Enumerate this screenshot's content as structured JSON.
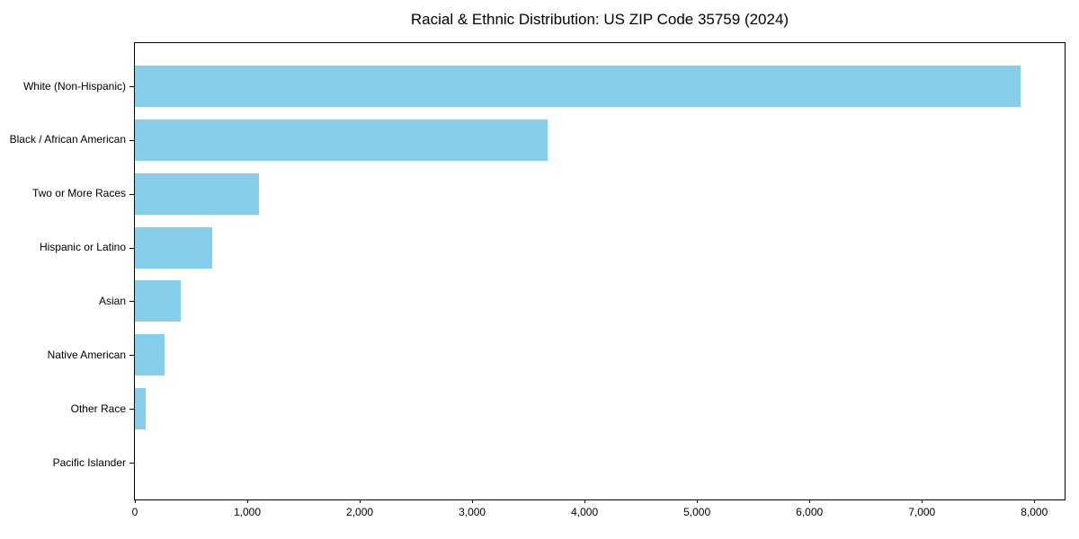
{
  "title": "Racial & Ethnic Distribution: US ZIP Code 35759 (2024)",
  "chart_data": {
    "type": "bar",
    "orientation": "horizontal",
    "title": "Racial & Ethnic Distribution: US ZIP Code 35759 (2024)",
    "xlabel": "",
    "ylabel": "",
    "categories": [
      "White (Non-Hispanic)",
      "Black / African American",
      "Two or More Races",
      "Hispanic or Latino",
      "Asian",
      "Native American",
      "Other Race",
      "Pacific Islander"
    ],
    "values": [
      7875,
      3675,
      1100,
      685,
      405,
      260,
      95,
      0
    ],
    "xlim": [
      0,
      8270
    ],
    "x_ticks": [
      0,
      1000,
      2000,
      3000,
      4000,
      5000,
      6000,
      7000,
      8000
    ],
    "x_tick_labels": [
      "0",
      "1,000",
      "2,000",
      "3,000",
      "4,000",
      "5,000",
      "6,000",
      "7,000",
      "8,000"
    ],
    "bar_color": "#87CEEB",
    "grid": false,
    "legend": null
  }
}
